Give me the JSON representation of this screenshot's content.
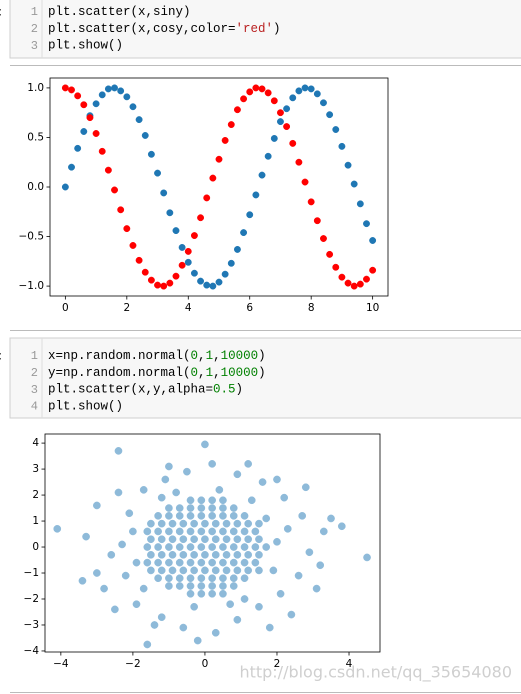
{
  "cells": [
    {
      "prompt": ":",
      "lines": [
        {
          "number": 1,
          "tokens": [
            {
              "text": "plt.scatter(x,siny)"
            }
          ]
        },
        {
          "number": 2,
          "tokens": [
            {
              "text": "plt.scatter(x,cosy,color="
            },
            {
              "text": "'red'",
              "color": "#ba2121"
            },
            {
              "text": ")"
            }
          ]
        },
        {
          "number": 3,
          "tokens": [
            {
              "text": "plt.show()"
            }
          ]
        }
      ]
    },
    {
      "prompt": ":",
      "lines": [
        {
          "number": 1,
          "tokens": [
            {
              "text": "x=np.random.normal("
            },
            {
              "text": "0",
              "color": "#008000"
            },
            {
              "text": ","
            },
            {
              "text": "1",
              "color": "#008000"
            },
            {
              "text": ","
            },
            {
              "text": "10000",
              "color": "#008000"
            },
            {
              "text": ")"
            }
          ]
        },
        {
          "number": 2,
          "tokens": [
            {
              "text": "y=np.random.normal("
            },
            {
              "text": "0",
              "color": "#008000"
            },
            {
              "text": ","
            },
            {
              "text": "1",
              "color": "#008000"
            },
            {
              "text": ","
            },
            {
              "text": "10000",
              "color": "#008000"
            },
            {
              "text": ")"
            }
          ]
        },
        {
          "number": 3,
          "tokens": [
            {
              "text": "plt.scatter(x,y,alpha="
            },
            {
              "text": "0.5",
              "color": "#008000"
            },
            {
              "text": ")"
            }
          ]
        },
        {
          "number": 4,
          "tokens": [
            {
              "text": "plt.show()"
            }
          ]
        }
      ]
    }
  ],
  "chart_data": [
    {
      "type": "scatter",
      "x": [
        0,
        0.2,
        0.4,
        0.6,
        0.8,
        1,
        1.2,
        1.4,
        1.6,
        1.8,
        2,
        2.2,
        2.4,
        2.6,
        2.8,
        3,
        3.2,
        3.4,
        3.6,
        3.8,
        4,
        4.2,
        4.4,
        4.6,
        4.8,
        5,
        5.2,
        5.4,
        5.6,
        5.8,
        6,
        6.2,
        6.4,
        6.6,
        6.8,
        7,
        7.2,
        7.4,
        7.6,
        7.8,
        8,
        8.2,
        8.4,
        8.6,
        8.8,
        9,
        9.2,
        9.4,
        9.6,
        9.8,
        10
      ],
      "series": [
        {
          "color": "#1f77b4",
          "values": [
            0,
            0.2,
            0.39,
            0.56,
            0.72,
            0.84,
            0.93,
            0.99,
            1,
            0.97,
            0.91,
            0.81,
            0.68,
            0.52,
            0.33,
            0.14,
            -0.06,
            -0.26,
            -0.44,
            -0.61,
            -0.76,
            -0.87,
            -0.95,
            -0.99,
            -1,
            -0.96,
            -0.88,
            -0.77,
            -0.63,
            -0.46,
            -0.28,
            -0.08,
            0.12,
            0.31,
            0.49,
            0.66,
            0.79,
            0.9,
            0.97,
            1,
            0.99,
            0.94,
            0.85,
            0.73,
            0.58,
            0.41,
            0.22,
            0.03,
            -0.17,
            -0.37,
            -0.54
          ]
        },
        {
          "color": "#ff0000",
          "values": [
            1,
            0.98,
            0.92,
            0.83,
            0.7,
            0.54,
            0.36,
            0.17,
            -0.03,
            -0.23,
            -0.42,
            -0.59,
            -0.74,
            -0.86,
            -0.94,
            -0.99,
            -1,
            -0.97,
            -0.9,
            -0.79,
            -0.65,
            -0.49,
            -0.31,
            -0.11,
            0.09,
            0.28,
            0.47,
            0.63,
            0.78,
            0.89,
            0.96,
            1,
            0.99,
            0.95,
            0.87,
            0.75,
            0.61,
            0.44,
            0.25,
            0.05,
            -0.15,
            -0.34,
            -0.52,
            -0.68,
            -0.81,
            -0.91,
            -0.97,
            -1,
            -0.98,
            -0.93,
            -0.84
          ]
        }
      ],
      "xlim": [
        -0.5,
        10.5
      ],
      "ylim": [
        -1.1,
        1.1
      ],
      "xticks": [
        0,
        2,
        4,
        6,
        8,
        10
      ],
      "yticks": [
        {
          "value": -1,
          "label": "−1.0"
        },
        {
          "value": -0.5,
          "label": "−0.5"
        },
        {
          "value": 0,
          "label": "0.0"
        },
        0.5,
        {
          "value": 1,
          "label": "1.0"
        }
      ]
    },
    {
      "type": "scatter",
      "series": [
        {
          "color": "#1f77b4",
          "alpha": 0.5,
          "x": [
            -0.4,
            -0.1,
            0.2,
            0.5,
            -1,
            -0.7,
            -0.4,
            -0.1,
            0.2,
            0.5,
            0.8,
            -1.3,
            -1,
            -0.7,
            -0.4,
            -0.1,
            0.2,
            0.5,
            0.8,
            1.1,
            -1.5,
            -1.2,
            -0.9,
            -0.6,
            -0.3,
            0,
            0.3,
            0.6,
            0.9,
            1.2,
            1.5,
            -1.6,
            -1.3,
            -1,
            -0.7,
            -0.4,
            -0.1,
            0.2,
            0.5,
            0.8,
            1.1,
            1.4,
            -1.5,
            -1.2,
            -0.9,
            -0.6,
            -0.3,
            0,
            0.3,
            0.6,
            0.9,
            1.2,
            1.5,
            -1.6,
            -1.3,
            -1,
            -0.7,
            -0.4,
            -0.1,
            0.2,
            0.5,
            0.8,
            1.1,
            1.4,
            1.7,
            -1.5,
            -1.2,
            -0.9,
            -0.6,
            -0.3,
            0,
            0.3,
            0.6,
            0.9,
            1.2,
            1.5,
            -1.6,
            -1.3,
            -1,
            -0.7,
            -0.4,
            -0.1,
            0.2,
            0.5,
            0.8,
            1.1,
            1.4,
            -1.5,
            -1.2,
            -0.9,
            -0.6,
            -0.3,
            0,
            0.3,
            0.6,
            0.9,
            1.2,
            1.5,
            -1.3,
            -1,
            -0.7,
            -0.4,
            -0.1,
            0.2,
            0.5,
            0.8,
            1.1,
            -1,
            -0.7,
            -0.4,
            -0.1,
            0.2,
            0.5,
            0.8,
            -0.4,
            -0.1,
            0.2,
            0.5,
            -4.1,
            4.5,
            0,
            -2.4,
            -1.6,
            -2.8,
            -2.4,
            -2.1,
            -2.6,
            -2.2,
            -1.9,
            -1.2,
            -0.6,
            0.3,
            0.9,
            1.5,
            2.1,
            2.6,
            2.9,
            3.3,
            2.7,
            2.2,
            1.6,
            0.9,
            0.2,
            -0.5,
            -1.1,
            -1.7,
            3.5,
            3.8,
            -3.3,
            -3,
            -2.5,
            -1,
            1.2,
            2,
            2.4,
            -0.2,
            3.1,
            -3.4,
            2.8,
            -1.4,
            1.8,
            -2,
            2,
            -1.9,
            1.9,
            0.4,
            -0.3,
            1.1,
            -1.2,
            1.3,
            -0.8,
            0.7,
            -2.3,
            2.3,
            -1.7,
            1.7,
            3.2,
            -3
          ],
          "values": [
            -1.8,
            -1.8,
            -1.8,
            -1.8,
            -1.5,
            -1.5,
            -1.5,
            -1.5,
            -1.5,
            -1.5,
            -1.5,
            -1.2,
            -1.2,
            -1.2,
            -1.2,
            -1.2,
            -1.2,
            -1.2,
            -1.2,
            -1.2,
            -0.9,
            -0.9,
            -0.9,
            -0.9,
            -0.9,
            -0.9,
            -0.9,
            -0.9,
            -0.9,
            -0.9,
            -0.9,
            -0.6,
            -0.6,
            -0.6,
            -0.6,
            -0.6,
            -0.6,
            -0.6,
            -0.6,
            -0.6,
            -0.6,
            -0.6,
            -0.3,
            -0.3,
            -0.3,
            -0.3,
            -0.3,
            -0.3,
            -0.3,
            -0.3,
            -0.3,
            -0.3,
            -0.3,
            0,
            0,
            0,
            0,
            0,
            0,
            0,
            0,
            0,
            0,
            0,
            0,
            0.3,
            0.3,
            0.3,
            0.3,
            0.3,
            0.3,
            0.3,
            0.3,
            0.3,
            0.3,
            0.3,
            0.6,
            0.6,
            0.6,
            0.6,
            0.6,
            0.6,
            0.6,
            0.6,
            0.6,
            0.6,
            0.6,
            0.9,
            0.9,
            0.9,
            0.9,
            0.9,
            0.9,
            0.9,
            0.9,
            0.9,
            0.9,
            0.9,
            1.2,
            1.2,
            1.2,
            1.2,
            1.2,
            1.2,
            1.2,
            1.2,
            1.2,
            1.5,
            1.5,
            1.5,
            1.5,
            1.5,
            1.5,
            1.5,
            1.8,
            1.8,
            1.8,
            1.8,
            0.7,
            -0.4,
            3.95,
            3.7,
            -3.75,
            -1.6,
            2.1,
            1.3,
            -0.3,
            -1.1,
            -2.2,
            -2.7,
            -3.1,
            -3.3,
            -2.8,
            -2.3,
            -1.8,
            -1.1,
            -0.2,
            0.6,
            1.2,
            1.9,
            2.5,
            2.8,
            3.2,
            2.9,
            2.6,
            2.2,
            1.1,
            0.8,
            0.4,
            -1,
            -2.4,
            3.1,
            3.2,
            2.6,
            -2.6,
            -3.6,
            -1.6,
            -1.3,
            2.3,
            -3,
            -3.1,
            0.6,
            0.2,
            -0.6,
            -0.9,
            2.2,
            -2.3,
            -2,
            1.9,
            1.8,
            2.1,
            -2.2,
            0.1,
            0.7,
            -1.6,
            1.1,
            -0.7,
            1.6
          ]
        }
      ],
      "xlim": [
        -4.44,
        4.86
      ],
      "ylim": [
        -4.04,
        4.35
      ],
      "xticks": [
        {
          "value": -4,
          "label": "−4"
        },
        {
          "value": -2,
          "label": "−2"
        },
        0,
        2,
        4
      ],
      "yticks": [
        {
          "value": -4,
          "label": "−4"
        },
        {
          "value": -3,
          "label": "−3"
        },
        {
          "value": -2,
          "label": "−2"
        },
        {
          "value": -1,
          "label": "−1"
        },
        0,
        1,
        2,
        3,
        4
      ]
    }
  ],
  "watermark": "http://blog.csdn.net/qq_35654080"
}
